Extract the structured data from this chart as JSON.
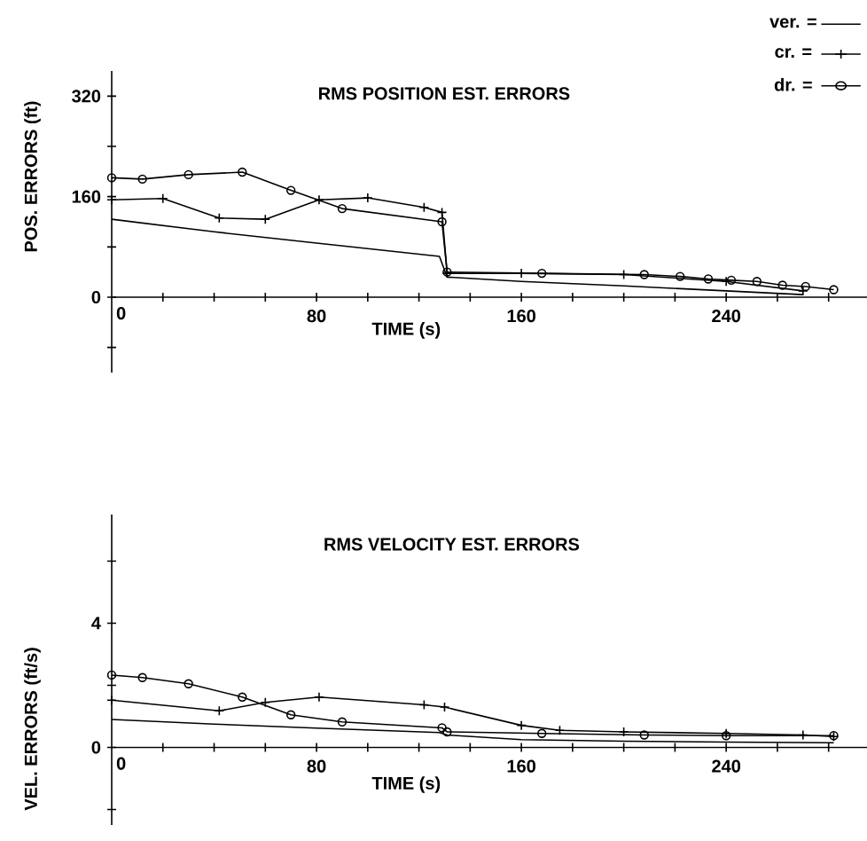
{
  "chart_data": [
    {
      "type": "line",
      "title": "RMS POSITION EST. ERRORS",
      "xlabel": "TIME  (s)",
      "ylabel": "POS. ERRORS  (ft)",
      "xlim": [
        0,
        295
      ],
      "ylim": [
        -120,
        360
      ],
      "xticks": [
        0,
        {
          "value": 20,
          "label": null
        },
        {
          "value": 40,
          "label": null
        },
        {
          "value": 60,
          "label": null
        },
        80,
        {
          "value": 100,
          "label": null
        },
        {
          "value": 120,
          "label": null
        },
        {
          "value": 140,
          "label": null
        },
        160,
        {
          "value": 180,
          "label": null
        },
        {
          "value": 200,
          "label": null
        },
        {
          "value": 220,
          "label": null
        },
        240,
        {
          "value": 260,
          "label": null
        },
        {
          "value": 280,
          "label": null
        }
      ],
      "yticks": [
        {
          "value": -80,
          "label": null
        },
        0,
        {
          "value": 80,
          "label": null
        },
        160,
        {
          "value": 240,
          "label": null
        },
        320
      ],
      "legend": "top right",
      "grid": false,
      "series": [
        {
          "name": "ver. =",
          "color": "#000000",
          "marker": "none",
          "x": [
            0,
            40,
            80,
            128,
            131,
            160,
            200,
            240,
            270
          ],
          "values": [
            124,
            104,
            86,
            65,
            32,
            25,
            18,
            10,
            4
          ]
        },
        {
          "name": "cr. =",
          "color": "#000000",
          "marker": "cross",
          "x": [
            0,
            20,
            42,
            60,
            81,
            100,
            122,
            129,
            131,
            160,
            200,
            240,
            270
          ],
          "values": [
            155,
            157,
            126,
            124,
            155,
            158,
            143,
            135,
            38,
            38,
            36,
            25,
            10
          ]
        },
        {
          "name": "dr. =",
          "color": "#000000",
          "marker": "circle",
          "x": [
            0,
            12,
            30,
            51,
            70,
            90,
            129,
            131,
            168,
            208,
            222,
            233,
            242,
            252,
            262,
            271,
            282
          ],
          "values": [
            190,
            188,
            195,
            199,
            170,
            141,
            120,
            40,
            38,
            36,
            33,
            29,
            27,
            25,
            19,
            17,
            12
          ]
        }
      ]
    },
    {
      "type": "line",
      "title": "RMS VELOCITY EST. ERRORS",
      "xlabel": "TIME  (s)",
      "ylabel": "VEL. ERRORS  (ft/s)",
      "xlim": [
        0,
        295
      ],
      "ylim": [
        -2.5,
        7.5
      ],
      "xticks": [
        0,
        {
          "value": 20,
          "label": null
        },
        {
          "value": 40,
          "label": null
        },
        {
          "value": 60,
          "label": null
        },
        80,
        {
          "value": 100,
          "label": null
        },
        {
          "value": 120,
          "label": null
        },
        {
          "value": 140,
          "label": null
        },
        160,
        {
          "value": 180,
          "label": null
        },
        {
          "value": 200,
          "label": null
        },
        {
          "value": 220,
          "label": null
        },
        240,
        {
          "value": 260,
          "label": null
        },
        {
          "value": 280,
          "label": null
        }
      ],
      "yticks": [
        {
          "value": -2,
          "label": null
        },
        0,
        {
          "value": 2,
          "label": null
        },
        4,
        {
          "value": 6,
          "label": null
        }
      ],
      "grid": false,
      "series": [
        {
          "color": "#000000",
          "marker": "none",
          "x": [
            0,
            40,
            80,
            128,
            131,
            160,
            200,
            240,
            282
          ],
          "values": [
            0.9,
            0.75,
            0.62,
            0.48,
            0.4,
            0.25,
            0.2,
            0.17,
            0.15
          ]
        },
        {
          "color": "#000000",
          "marker": "cross",
          "x": [
            0,
            42,
            60,
            81,
            122,
            130,
            160,
            175,
            200,
            240,
            270,
            282
          ],
          "values": [
            1.52,
            1.18,
            1.45,
            1.62,
            1.37,
            1.3,
            0.71,
            0.55,
            0.5,
            0.45,
            0.4,
            0.35
          ]
        },
        {
          "color": "#000000",
          "marker": "circle",
          "x": [
            0,
            12,
            30,
            51,
            70,
            90,
            129,
            131,
            168,
            208,
            240,
            282
          ],
          "values": [
            2.33,
            2.25,
            2.05,
            1.62,
            1.05,
            0.82,
            0.63,
            0.5,
            0.45,
            0.4,
            0.38,
            0.38
          ]
        }
      ]
    }
  ]
}
